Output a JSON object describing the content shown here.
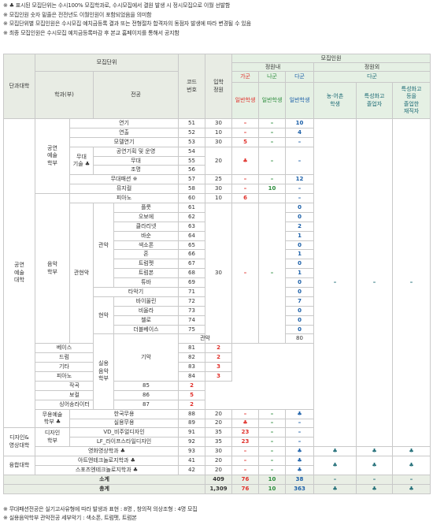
{
  "notes": [
    "※ ♣ 표시된 모집단위는 수시100% 모집학과로, 수시모집에서 결원 발생 시 정시모집으로 이월 선발함",
    "※ 모집인원 숫자 밑줄은 전전년도 이월인원이 포함되었음을 의미함",
    "※ 모집단위별 모집인원은 수시모집 예치금등록 결과 또는 전형절차 합격자의 동점자 발생에 따라 변경될 수 있음",
    "※ 최종 모집인원은 수시모집 예치금등록마감 후 본교 홈페이지를 통해서 공지함"
  ],
  "header": {
    "college": "단과대학",
    "unit": "모집단위",
    "dept": "학과(부)",
    "major": "전공",
    "code": "코드\n번호",
    "quota": "입학\n정원",
    "recruit": "모집인원",
    "inside": "정원내",
    "outside": "정원외",
    "ga": "가군",
    "na": "나군",
    "da": "다군",
    "da2": "다군",
    "general": "일반학생",
    "farm": "농·어촌\n학생",
    "special_school": "특성화고\n졸업자",
    "special_worker": "특성화고\n등을\n졸업한\n재직자"
  },
  "rows": [
    {
      "major": "연기",
      "code": "51",
      "quota": "30",
      "ga": "–",
      "na": "–",
      "da": "10"
    },
    {
      "major": "연출",
      "code": "52",
      "quota": "10",
      "ga": "–",
      "na": "–",
      "da": "4"
    },
    {
      "major": "모델연기",
      "code": "53",
      "quota": "30",
      "ga": "5",
      "na": "–",
      "da": "–"
    },
    {
      "major": "공연기획 및 운영",
      "code": "54",
      "quota": "",
      "ga": "",
      "na": "",
      "da": ""
    },
    {
      "major": "무대",
      "code": "55",
      "quota": "20",
      "ga": "♣",
      "na": "–",
      "da": "–"
    },
    {
      "major": "조명",
      "code": "56",
      "quota": "",
      "ga": "",
      "na": "",
      "da": ""
    },
    {
      "major": "무대패션 ※",
      "code": "57",
      "quota": "25",
      "ga": "–",
      "na": "–",
      "da": "12"
    },
    {
      "major": "뮤지컬",
      "code": "58",
      "quota": "30",
      "ga": "–",
      "na": "10",
      "da": "–"
    },
    {
      "major": "피아노",
      "code": "60",
      "quota": "10",
      "ga": "6",
      "na": "",
      "da": "–"
    },
    {
      "major": "플룻",
      "code": "61",
      "quota": "",
      "ga": "",
      "na": "",
      "da": "0"
    },
    {
      "major": "오보에",
      "code": "62",
      "quota": "",
      "ga": "",
      "na": "",
      "da": "0"
    },
    {
      "major": "클라리넷",
      "code": "63",
      "quota": "",
      "ga": "",
      "na": "",
      "da": "2"
    },
    {
      "major": "바순",
      "code": "64",
      "quota": "",
      "ga": "",
      "na": "",
      "da": "1"
    },
    {
      "major": "색소폰",
      "code": "65",
      "quota": "",
      "ga": "",
      "na": "",
      "da": "0"
    },
    {
      "major": "혼",
      "code": "66",
      "quota": "",
      "ga": "",
      "na": "",
      "da": "1"
    },
    {
      "major": "트럼펫",
      "code": "67",
      "quota": "",
      "ga": "",
      "na": "",
      "da": "0"
    },
    {
      "major": "트럼본",
      "code": "68",
      "quota": "30",
      "ga": "–",
      "na": "–",
      "da": "1"
    },
    {
      "major": "튜바",
      "code": "69",
      "quota": "",
      "ga": "",
      "na": "",
      "da": "0"
    },
    {
      "major": "타악기",
      "code": "71",
      "quota": "",
      "ga": "",
      "na": "",
      "da": "0"
    },
    {
      "major": "바이올린",
      "code": "72",
      "quota": "",
      "ga": "",
      "na": "",
      "da": "7"
    },
    {
      "major": "비올라",
      "code": "73",
      "quota": "",
      "ga": "",
      "na": "",
      "da": "0"
    },
    {
      "major": "첼로",
      "code": "74",
      "quota": "",
      "ga": "",
      "na": "",
      "da": "0"
    },
    {
      "major": "더블베이스",
      "code": "75",
      "quota": "",
      "ga": "",
      "na": "",
      "da": "0"
    },
    {
      "major": "관악",
      "code": "80",
      "quota": "",
      "ga": "♣",
      "na": "",
      "da": ""
    },
    {
      "major": "베이스",
      "code": "81",
      "quota": "",
      "ga": "2",
      "na": "",
      "da": ""
    },
    {
      "major": "드럼",
      "code": "82",
      "quota": "",
      "ga": "2",
      "na": "",
      "da": ""
    },
    {
      "major": "기타",
      "code": "83",
      "quota": "44",
      "ga": "3",
      "na": "–",
      "da": "–"
    },
    {
      "major": "피아노",
      "code": "84",
      "quota": "",
      "ga": "3",
      "na": "",
      "da": ""
    },
    {
      "major": "작곡",
      "code": "85",
      "quota": "",
      "ga": "2",
      "na": "",
      "da": ""
    },
    {
      "major": "보컬",
      "code": "86",
      "quota": "",
      "ga": "5",
      "na": "",
      "da": ""
    },
    {
      "major": "싱어송라이터",
      "code": "87",
      "quota": "",
      "ga": "2",
      "na": "",
      "da": ""
    },
    {
      "major": "한국무용",
      "code": "88",
      "quota": "20",
      "ga": "–",
      "na": "–",
      "da": "♣"
    },
    {
      "major": "실용무용",
      "code": "89",
      "quota": "20",
      "ga": "♣",
      "na": "–",
      "da": "–"
    },
    {
      "major": "VD_비주얼디자인",
      "code": "91",
      "quota": "35",
      "ga": "23",
      "na": "–",
      "da": "–"
    },
    {
      "major": "LF_라이프스타일디자인",
      "code": "92",
      "quota": "35",
      "ga": "23",
      "na": "–",
      "da": "–"
    },
    {
      "major": "영화영상학과 ♣",
      "code": "93",
      "quota": "30",
      "ga": "–",
      "na": "–",
      "da": "♣"
    },
    {
      "major": "아트앤테크놀로지학과 ♣",
      "code": "41",
      "quota": "20",
      "ga": "–",
      "na": "–",
      "da": "♣"
    },
    {
      "major": "스포츠엔테크놀로지학과 ♣",
      "code": "42",
      "quota": "20",
      "ga": "–",
      "na": "–",
      "da": "♣"
    }
  ],
  "groups": {
    "college1": "공연\n예술\n대학",
    "college2": "디자인&\n영상대학",
    "college3": "융합대학",
    "dept1": "공연\n예술\n학부",
    "dept2": "음악\n학부",
    "dept3": "실용\n음악\n학부",
    "dept4": "무용예술\n학부 ♣",
    "dept5": "디자인\n학부",
    "sub_stage": "무대\n기술 ♣",
    "sub_classical": "관현악",
    "sub_wind": "관악",
    "sub_string": "현악",
    "sub_instr": "기악",
    "dash": "–",
    "club": "♣"
  },
  "subtotal": {
    "label": "소계",
    "quota": "409",
    "ga": "76",
    "na": "10",
    "da": "38",
    "farm": "–",
    "school": "–",
    "worker": "–"
  },
  "total": {
    "label": "총계",
    "quota": "1,309",
    "ga": "76",
    "na": "10",
    "da": "363",
    "farm": "♣",
    "school": "♣",
    "worker": "♣"
  },
  "foot": [
    "※ 무대패션전공은 실기고사유형에 따라 발생과 표현 : 8명 , 창의적 의상조형 : 4명 모집",
    "※ 실용음악학부 관악전공 세부악기 : 색소폰, 트럼펫, 트럼본"
  ]
}
